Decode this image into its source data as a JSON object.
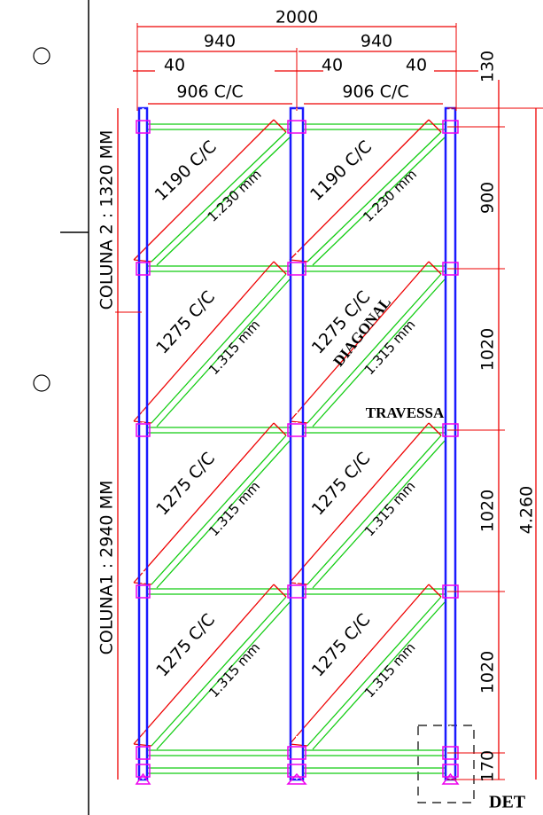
{
  "dimensions": {
    "overall_width": "2000",
    "bay_widths": [
      "940",
      "940"
    ],
    "offsets": [
      "40",
      "40",
      "40"
    ],
    "centers": [
      "906 C/C",
      "906 C/C"
    ],
    "heights": [
      "130",
      "900",
      "1020",
      "1020",
      "1020",
      "170"
    ],
    "total_height": "4.260"
  },
  "columns": [
    "COLUNA 2 : 1320 MM",
    "COLUNA1 : 2940 MM"
  ],
  "diagonals": [
    {
      "spacing": "1190 C/C",
      "length": "1.230 mm"
    },
    {
      "spacing": "1190 C/C",
      "length": "1.230 mm"
    },
    {
      "spacing": "1275 C/C",
      "length": "1.315 mm"
    },
    {
      "spacing": "1275 C/C",
      "length": "1.315 mm"
    },
    {
      "spacing": "1275 C/C",
      "length": "1.315 mm"
    },
    {
      "spacing": "1275 C/C",
      "length": "1.315 mm"
    },
    {
      "spacing": "1275 C/C",
      "length": "1.315 mm"
    },
    {
      "spacing": "1275 C/C",
      "length": "1.315 mm"
    }
  ],
  "labels": {
    "diagonal": "DIAGONAL",
    "travessa": "TRAVESSA",
    "detail": "DET"
  }
}
